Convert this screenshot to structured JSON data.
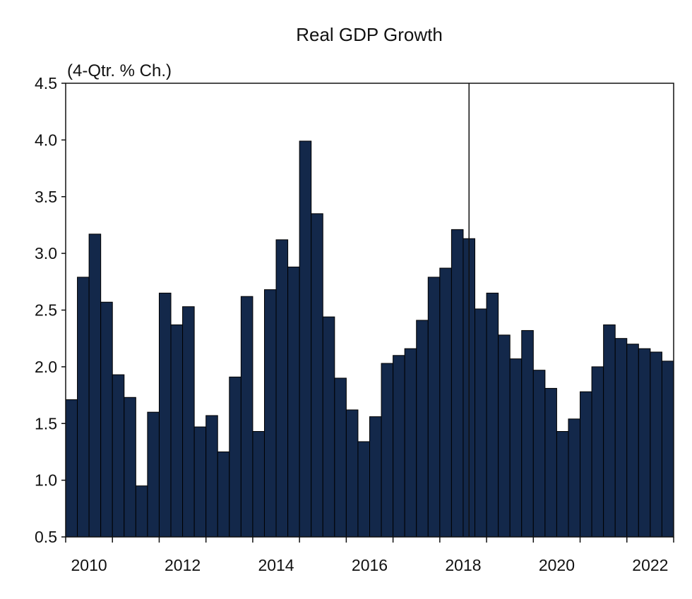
{
  "chart_data": {
    "type": "bar",
    "title": "Real GDP Growth",
    "ylabel": "(4-Qtr. % Ch.)",
    "xlabel": "",
    "ylim": [
      0.5,
      4.5
    ],
    "yticks": [
      "0.5",
      "1.0",
      "1.5",
      "2.0",
      "2.5",
      "3.0",
      "3.5",
      "4.0",
      "4.5"
    ],
    "xticks": [
      "2010",
      "2012",
      "2014",
      "2016",
      "2018",
      "2020",
      "2022"
    ],
    "x_start": "2010 Q1",
    "x_end": "2022 Q4",
    "frequency": "quarterly",
    "vertical_line_at": "2018 Q3",
    "bar_color": "#13284a",
    "grid": false,
    "values": [
      1.71,
      2.79,
      3.17,
      2.57,
      1.93,
      1.73,
      0.95,
      1.6,
      2.65,
      2.37,
      2.53,
      1.47,
      1.57,
      1.25,
      1.91,
      2.62,
      1.43,
      2.68,
      3.12,
      2.88,
      3.99,
      3.35,
      2.44,
      1.9,
      1.62,
      1.34,
      1.56,
      2.03,
      2.1,
      2.16,
      2.41,
      2.79,
      2.87,
      3.21,
      3.13,
      2.51,
      2.65,
      2.28,
      2.07,
      2.32,
      1.97,
      1.81,
      1.43,
      1.54,
      1.78,
      2.0,
      2.37,
      2.25,
      2.2,
      2.16,
      2.13,
      2.05
    ]
  }
}
